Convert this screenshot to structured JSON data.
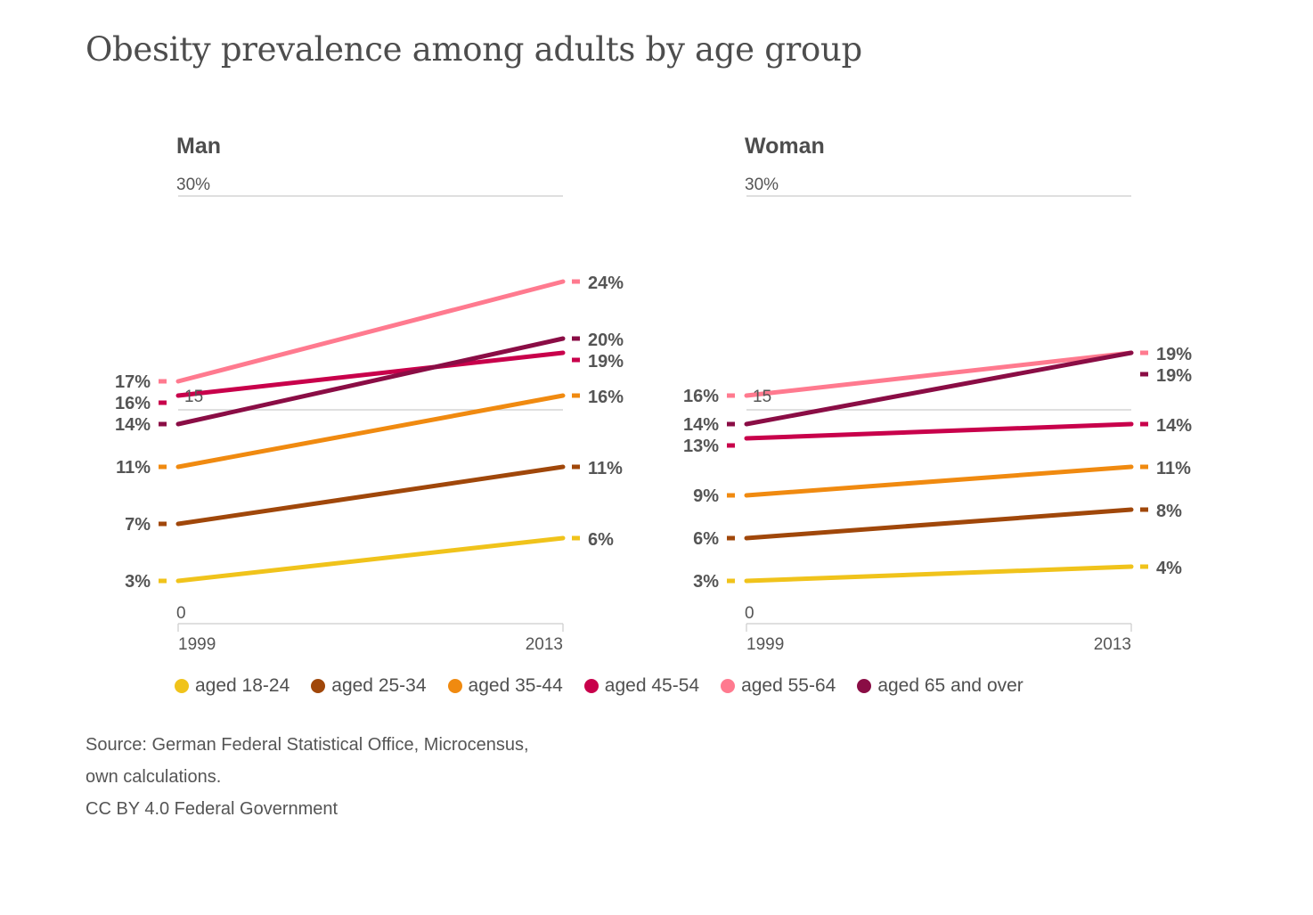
{
  "title": "Obesity prevalence among adults by age group",
  "source": {
    "line1": "Source: German Federal Statistical Office, Microcensus,",
    "line2": "own calculations.",
    "line3": "CC BY 4.0 Federal Government"
  },
  "legend": [
    {
      "label": "aged 18-24",
      "color": "#f0c31b"
    },
    {
      "label": "aged 25-34",
      "color": "#a0470a"
    },
    {
      "label": "aged 35-44",
      "color": "#f08a10"
    },
    {
      "label": "aged 45-54",
      "color": "#c8004b"
    },
    {
      "label": "aged 55-64",
      "color": "#ff7a8f"
    },
    {
      "label": "aged 65 and over",
      "color": "#8a0d45"
    }
  ],
  "chart_data": [
    {
      "type": "line",
      "title": "Man",
      "x": [
        "1999",
        "2013"
      ],
      "ylim": [
        0,
        30
      ],
      "y_ticks": [
        "30%",
        "0"
      ],
      "annotations": [
        {
          "text": "15",
          "x": "1999",
          "y": 16
        }
      ],
      "series": [
        {
          "name": "aged 18-24",
          "color": "#f0c31b",
          "values": [
            3,
            6
          ],
          "labels": [
            "3%",
            "6%"
          ]
        },
        {
          "name": "aged 25-34",
          "color": "#a0470a",
          "values": [
            7,
            11
          ],
          "labels": [
            "7%",
            "11%"
          ]
        },
        {
          "name": "aged 35-44",
          "color": "#f08a10",
          "values": [
            11,
            16
          ],
          "labels": [
            "11%",
            "16%"
          ]
        },
        {
          "name": "aged 45-54",
          "color": "#c8004b",
          "values": [
            16,
            19
          ],
          "labels": [
            "16%",
            "19%"
          ]
        },
        {
          "name": "aged 55-64",
          "color": "#ff7a8f",
          "values": [
            17,
            24
          ],
          "labels": [
            "17%",
            "24%"
          ]
        },
        {
          "name": "aged 65 and over",
          "color": "#8a0d45",
          "values": [
            14,
            20
          ],
          "labels": [
            "14%",
            "20%"
          ]
        }
      ]
    },
    {
      "type": "line",
      "title": "Woman",
      "x": [
        "1999",
        "2013"
      ],
      "ylim": [
        0,
        30
      ],
      "y_ticks": [
        "30%",
        "0"
      ],
      "annotations": [
        {
          "text": "15",
          "x": "1999",
          "y": 16
        }
      ],
      "series": [
        {
          "name": "aged 18-24",
          "color": "#f0c31b",
          "values": [
            3,
            4
          ],
          "labels": [
            "3%",
            "4%"
          ]
        },
        {
          "name": "aged 25-34",
          "color": "#a0470a",
          "values": [
            6,
            8
          ],
          "labels": [
            "6%",
            "8%"
          ]
        },
        {
          "name": "aged 35-44",
          "color": "#f08a10",
          "values": [
            9,
            11
          ],
          "labels": [
            "9%",
            "11%"
          ]
        },
        {
          "name": "aged 45-54",
          "color": "#c8004b",
          "values": [
            13,
            14
          ],
          "labels": [
            "13%",
            "14%"
          ]
        },
        {
          "name": "aged 55-64",
          "color": "#ff7a8f",
          "values": [
            16,
            19
          ],
          "labels": [
            "16%",
            "19%"
          ]
        },
        {
          "name": "aged 65 and over",
          "color": "#8a0d45",
          "values": [
            14,
            19
          ],
          "labels": [
            "14%",
            "19%"
          ]
        }
      ]
    }
  ]
}
